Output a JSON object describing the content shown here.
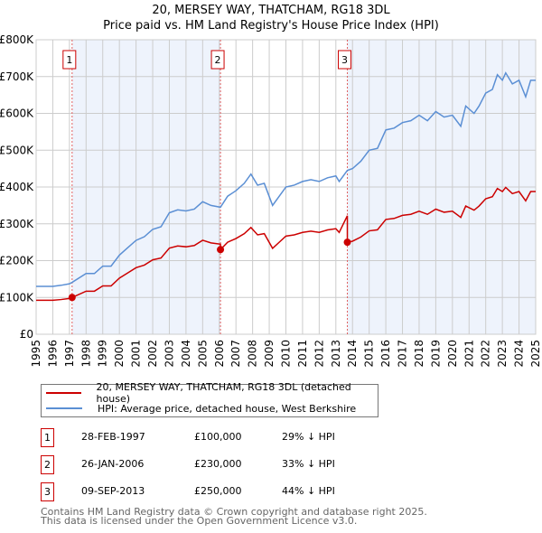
{
  "chart_data": {
    "type": "line",
    "title": "20, MERSEY WAY, THATCHAM, RG18 3DL",
    "subtitle": "Price paid vs. HM Land Registry's House Price Index (HPI)",
    "ylim": [
      0,
      800000
    ],
    "xlim": [
      1995,
      2025
    ],
    "yticks": [
      {
        "v": 0,
        "label": "£0"
      },
      {
        "v": 100000,
        "label": "£100K"
      },
      {
        "v": 200000,
        "label": "£200K"
      },
      {
        "v": 300000,
        "label": "£300K"
      },
      {
        "v": 400000,
        "label": "£400K"
      },
      {
        "v": 500000,
        "label": "£500K"
      },
      {
        "v": 600000,
        "label": "£600K"
      },
      {
        "v": 700000,
        "label": "£700K"
      },
      {
        "v": 800000,
        "label": "£800K"
      }
    ],
    "xticks": [
      "1995",
      "1996",
      "1997",
      "1998",
      "1999",
      "2000",
      "2001",
      "2002",
      "2003",
      "2004",
      "2005",
      "2006",
      "2007",
      "2008",
      "2009",
      "2010",
      "2011",
      "2012",
      "2013",
      "2014",
      "2015",
      "2016",
      "2017",
      "2018",
      "2019",
      "2020",
      "2021",
      "2022",
      "2023",
      "2024",
      "2025"
    ],
    "grid": true,
    "hpi": {
      "name": "HPI: Average price, detached house, West Berkshire",
      "color": "#5b8fd4",
      "x": [
        1995,
        1996,
        1996.5,
        1997,
        1997.16,
        1998,
        1998.5,
        1999,
        1999.5,
        2000,
        2000.5,
        2001,
        2001.5,
        2002,
        2002.5,
        2003,
        2003.5,
        2004,
        2004.5,
        2005,
        2005.5,
        2006.07,
        2006.5,
        2007,
        2007.5,
        2007.9,
        2008.3,
        2008.7,
        2009.2,
        2009.6,
        2010,
        2010.5,
        2011,
        2011.5,
        2012,
        2012.5,
        2013,
        2013.2,
        2013.69,
        2014,
        2014.5,
        2015,
        2015.5,
        2016,
        2016.5,
        2017,
        2017.5,
        2018,
        2018.5,
        2019,
        2019.5,
        2020,
        2020.5,
        2020.8,
        2021.3,
        2021.6,
        2022,
        2022.4,
        2022.7,
        2023,
        2023.2,
        2023.6,
        2024,
        2024.4,
        2024.7,
        2025
      ],
      "y": [
        130000,
        130000,
        133000,
        137000,
        141000,
        165000,
        165000,
        185000,
        185000,
        215000,
        235000,
        255000,
        265000,
        285000,
        292000,
        330000,
        338000,
        335000,
        340000,
        360000,
        350000,
        345000,
        375000,
        390000,
        410000,
        435000,
        405000,
        410000,
        350000,
        375000,
        400000,
        405000,
        415000,
        420000,
        415000,
        425000,
        430000,
        415000,
        445000,
        450000,
        470000,
        500000,
        505000,
        555000,
        560000,
        575000,
        580000,
        595000,
        580000,
        605000,
        590000,
        595000,
        565000,
        620000,
        600000,
        620000,
        655000,
        665000,
        705000,
        690000,
        710000,
        680000,
        690000,
        645000,
        690000,
        690000
      ]
    },
    "property": {
      "name": "20, MERSEY WAY, THATCHAM, RG18 3DL (detached house)",
      "color": "#cc0000"
    },
    "sales": [
      {
        "n": "1",
        "x": 1997.16,
        "date": "28-FEB-1997",
        "price": 100000,
        "price_label": "£100,000",
        "hpi_diff": "29% ↓ HPI"
      },
      {
        "n": "2",
        "x": 2006.07,
        "date": "26-JAN-2006",
        "price": 230000,
        "price_label": "£230,000",
        "hpi_diff": "33% ↓ HPI"
      },
      {
        "n": "3",
        "x": 2013.69,
        "date": "09-SEP-2013",
        "price": 250000,
        "price_label": "£250,000",
        "hpi_diff": "44% ↓ HPI"
      }
    ]
  },
  "footer": {
    "line1": "Contains HM Land Registry data © Crown copyright and database right 2025.",
    "line2": "This data is licensed under the Open Government Licence v3.0."
  }
}
